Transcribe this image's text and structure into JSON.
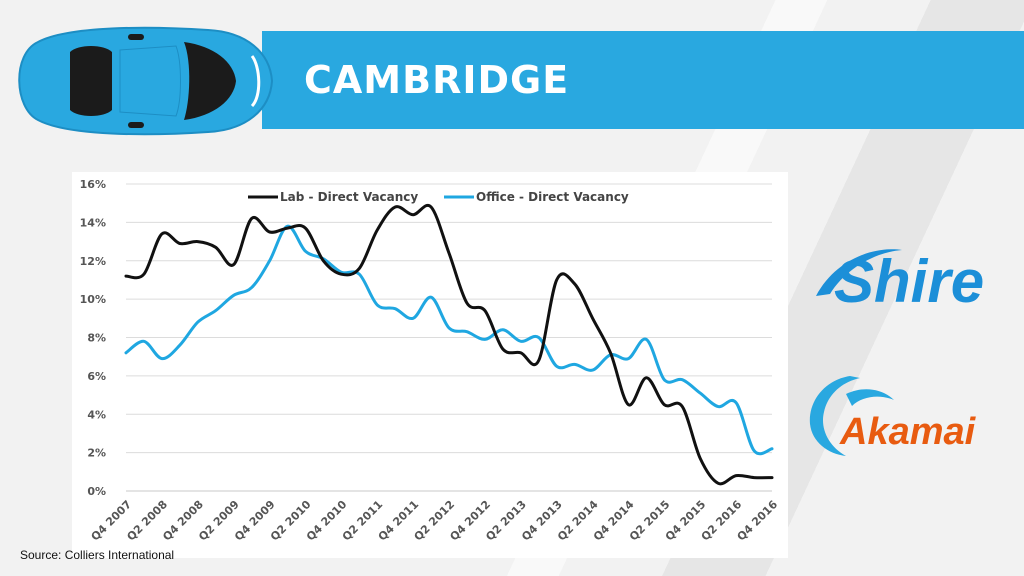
{
  "slide": {
    "title": "CAMBRIDGE",
    "source": "Source: Colliers International"
  },
  "logos": {
    "shire": "Shire",
    "akamai": "Akamai"
  },
  "colors": {
    "banner": "#29a8e0",
    "lab_series": "#111111",
    "office_series": "#1fa7e1",
    "shire": "#1c8fd8",
    "akamai": "#e85b10"
  },
  "chart_data": {
    "type": "line",
    "title": "",
    "xlabel": "",
    "ylabel": "",
    "ylim": [
      0,
      16
    ],
    "yticks": [
      "0%",
      "2%",
      "4%",
      "6%",
      "8%",
      "10%",
      "12%",
      "14%",
      "16%"
    ],
    "grid": true,
    "legend_position": "top",
    "x_tick_labels": [
      "Q4 2007",
      "Q2 2008",
      "Q4 2008",
      "Q2 2009",
      "Q4 2009",
      "Q2 2010",
      "Q4 2010",
      "Q2 2011",
      "Q4 2011",
      "Q2 2012",
      "Q4 2012",
      "Q2 2013",
      "Q4 2013",
      "Q2 2014",
      "Q4 2014",
      "Q2 2015",
      "Q4 2015",
      "Q2 2016",
      "Q4 2016"
    ],
    "categories": [
      "Q4 2007",
      "Q1 2008",
      "Q2 2008",
      "Q3 2008",
      "Q4 2008",
      "Q1 2009",
      "Q2 2009",
      "Q3 2009",
      "Q4 2009",
      "Q1 2010",
      "Q2 2010",
      "Q3 2010",
      "Q4 2010",
      "Q1 2011",
      "Q2 2011",
      "Q3 2011",
      "Q4 2011",
      "Q1 2012",
      "Q2 2012",
      "Q3 2012",
      "Q4 2012",
      "Q1 2013",
      "Q2 2013",
      "Q3 2013",
      "Q4 2013",
      "Q1 2014",
      "Q2 2014",
      "Q3 2014",
      "Q4 2014",
      "Q1 2015",
      "Q2 2015",
      "Q3 2015",
      "Q4 2015",
      "Q1 2016",
      "Q2 2016",
      "Q3 2016",
      "Q4 2016"
    ],
    "series": [
      {
        "name": "Lab - Direct Vacancy",
        "values": [
          11.2,
          11.3,
          13.4,
          12.9,
          13.0,
          12.7,
          11.8,
          14.2,
          13.5,
          13.7,
          13.7,
          12.0,
          11.3,
          11.6,
          13.6,
          14.8,
          14.4,
          14.8,
          12.4,
          9.8,
          9.4,
          7.4,
          7.2,
          6.8,
          11.0,
          10.8,
          9.0,
          7.2,
          4.5,
          5.9,
          4.5,
          4.4,
          1.7,
          0.4,
          0.8,
          0.7,
          0.7
        ]
      },
      {
        "name": "Office - Direct Vacancy",
        "values": [
          7.2,
          7.8,
          6.9,
          7.6,
          8.8,
          9.4,
          10.2,
          10.6,
          12.0,
          13.8,
          12.5,
          12.1,
          11.4,
          11.3,
          9.7,
          9.5,
          9.0,
          10.1,
          8.5,
          8.3,
          7.9,
          8.4,
          7.8,
          8.0,
          6.5,
          6.6,
          6.3,
          7.1,
          6.9,
          7.9,
          5.8,
          5.8,
          5.1,
          4.4,
          4.6,
          2.1,
          2.2
        ]
      }
    ]
  }
}
